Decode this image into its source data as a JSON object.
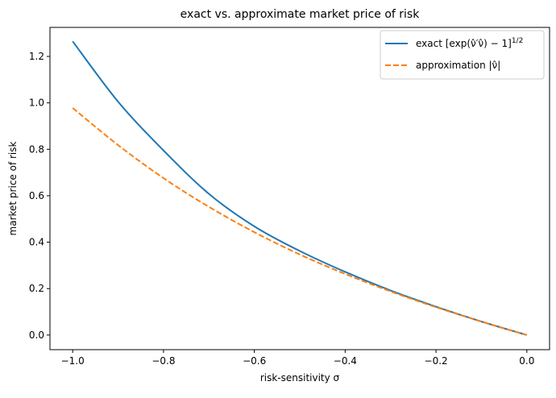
{
  "chart_data": {
    "type": "line",
    "title": "exact vs. approximate market price of risk",
    "xlabel": "risk-sensitivity σ",
    "ylabel": "market price of risk",
    "xlim": [
      -1.05,
      0.05
    ],
    "ylim": [
      -0.063,
      1.325
    ],
    "xticks": [
      -1.0,
      -0.8,
      -0.6,
      -0.4,
      -0.2,
      0.0
    ],
    "xtick_labels": [
      "−1.0",
      "−0.8",
      "−0.6",
      "−0.4",
      "−0.2",
      "0.0"
    ],
    "yticks": [
      0.0,
      0.2,
      0.4,
      0.6,
      0.8,
      1.0,
      1.2
    ],
    "ytick_labels": [
      "0.0",
      "0.2",
      "0.4",
      "0.6",
      "0.8",
      "1.0",
      "1.2"
    ],
    "grid": false,
    "legend": "top-right",
    "x": [
      -1.0,
      -0.9,
      -0.8,
      -0.7,
      -0.6,
      -0.5,
      -0.4,
      -0.3,
      -0.2,
      -0.1,
      0.0
    ],
    "series": [
      {
        "name": "exact [exp(ν̂′ν̂) − 1]^1/2",
        "name_main": "exact [exp(ν̂′ν̂) − 1]",
        "name_sup": "1/2",
        "color": "#1f77b4",
        "dash": "solid",
        "values": [
          1.265,
          1.005,
          0.795,
          0.608,
          0.468,
          0.362,
          0.272,
          0.192,
          0.122,
          0.058,
          0.0
        ]
      },
      {
        "name": "approximation |ν̂|",
        "color": "#ff7f0e",
        "dash": "dashed",
        "values": [
          0.978,
          0.818,
          0.676,
          0.552,
          0.443,
          0.347,
          0.263,
          0.188,
          0.12,
          0.058,
          0.0
        ]
      }
    ]
  }
}
